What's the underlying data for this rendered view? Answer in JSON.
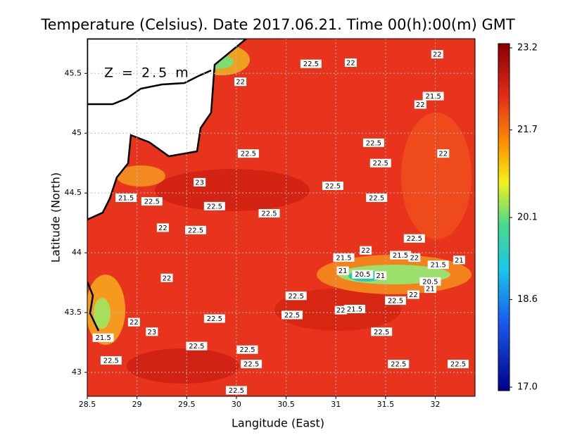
{
  "map": {
    "title": "Temperature (Celsius). Date 2017.06.21. Time 00(h):00(m) GMT",
    "annotation": "Z = 2.5 m",
    "x_label": "Langitude (East)",
    "y_label": "Latitude (North)",
    "xlim": [
      28.5,
      32.4
    ],
    "ylim": [
      42.8,
      45.79
    ],
    "xticks": [
      28.5,
      29,
      29.5,
      30,
      30.5,
      31,
      31.5,
      32
    ],
    "yticks": [
      43,
      43.5,
      44,
      44.5,
      45,
      45.5
    ],
    "grid": true,
    "colorbar": {
      "lim": [
        17,
        23.2
      ],
      "ticks": [
        23.2,
        21.7,
        20.1,
        18.6,
        {
          "value": 17,
          "label": "17.0"
        }
      ]
    },
    "contour_labels": [
      {
        "value": 22,
        "lon": 32.02,
        "lat": 45.66
      },
      {
        "value": 22.5,
        "lon": 30.75,
        "lat": 45.58
      },
      {
        "value": 22,
        "lon": 31.15,
        "lat": 45.59
      },
      {
        "value": 22,
        "lon": 30.04,
        "lat": 45.43
      },
      {
        "value": 21.5,
        "lon": 31.98,
        "lat": 45.31
      },
      {
        "value": 22,
        "lon": 31.85,
        "lat": 45.24
      },
      {
        "value": 22.5,
        "lon": 31.38,
        "lat": 44.92
      },
      {
        "value": 22,
        "lon": 32.08,
        "lat": 44.83
      },
      {
        "value": 22.5,
        "lon": 30.12,
        "lat": 44.83
      },
      {
        "value": 22.5,
        "lon": 31.45,
        "lat": 44.75
      },
      {
        "value": 23,
        "lon": 29.63,
        "lat": 44.59
      },
      {
        "value": 22.5,
        "lon": 30.97,
        "lat": 44.56
      },
      {
        "value": 22.5,
        "lon": 31.41,
        "lat": 44.46
      },
      {
        "value": 21.5,
        "lon": 28.89,
        "lat": 44.46
      },
      {
        "value": 22.5,
        "lon": 29.15,
        "lat": 44.43
      },
      {
        "value": 22.5,
        "lon": 29.78,
        "lat": 44.39
      },
      {
        "value": 22.5,
        "lon": 30.33,
        "lat": 44.33
      },
      {
        "value": 22,
        "lon": 29.26,
        "lat": 44.21
      },
      {
        "value": 22.5,
        "lon": 29.59,
        "lat": 44.19
      },
      {
        "value": 22.5,
        "lon": 31.79,
        "lat": 44.12
      },
      {
        "value": 22,
        "lon": 31.3,
        "lat": 44.02
      },
      {
        "value": 21.5,
        "lon": 31.08,
        "lat": 43.96
      },
      {
        "value": 21.5,
        "lon": 31.65,
        "lat": 43.98
      },
      {
        "value": 22,
        "lon": 31.79,
        "lat": 43.96
      },
      {
        "value": 21,
        "lon": 32.24,
        "lat": 43.94
      },
      {
        "value": 21.5,
        "lon": 32.03,
        "lat": 43.9
      },
      {
        "value": 21,
        "lon": 31.07,
        "lat": 43.85
      },
      {
        "value": 20.5,
        "lon": 31.27,
        "lat": 43.82
      },
      {
        "value": 21,
        "lon": 31.45,
        "lat": 43.81
      },
      {
        "value": 22,
        "lon": 29.3,
        "lat": 43.79
      },
      {
        "value": 20.5,
        "lon": 31.95,
        "lat": 43.76
      },
      {
        "value": 21,
        "lon": 31.95,
        "lat": 43.7
      },
      {
        "value": 22,
        "lon": 31.78,
        "lat": 43.65
      },
      {
        "value": 22.5,
        "lon": 30.6,
        "lat": 43.64
      },
      {
        "value": 22.5,
        "lon": 31.6,
        "lat": 43.6
      },
      {
        "value": 21.5,
        "lon": 31.19,
        "lat": 43.53
      },
      {
        "value": 22,
        "lon": 31.05,
        "lat": 43.52
      },
      {
        "value": 22.5,
        "lon": 30.56,
        "lat": 43.48
      },
      {
        "value": 22.5,
        "lon": 29.78,
        "lat": 43.45
      },
      {
        "value": 22,
        "lon": 28.97,
        "lat": 43.42
      },
      {
        "value": 23,
        "lon": 29.15,
        "lat": 43.34
      },
      {
        "value": 22.5,
        "lon": 31.46,
        "lat": 43.34
      },
      {
        "value": 21.5,
        "lon": 28.66,
        "lat": 43.29
      },
      {
        "value": 22.5,
        "lon": 29.6,
        "lat": 43.22
      },
      {
        "value": 22.5,
        "lon": 30.11,
        "lat": 43.19
      },
      {
        "value": 22.5,
        "lon": 28.74,
        "lat": 43.1
      },
      {
        "value": 22.5,
        "lon": 30.15,
        "lat": 43.07
      },
      {
        "value": 22.5,
        "lon": 31.63,
        "lat": 43.07
      },
      {
        "value": 22.5,
        "lon": 32.23,
        "lat": 43.07
      },
      {
        "value": 22.5,
        "lon": 30.0,
        "lat": 42.85
      }
    ]
  }
}
